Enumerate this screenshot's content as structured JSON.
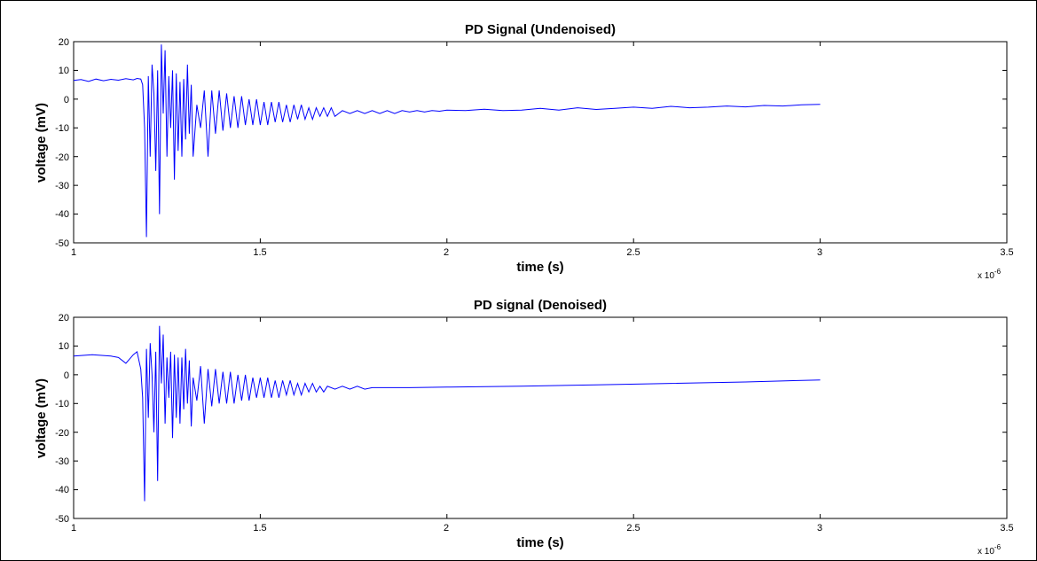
{
  "figure": {
    "background": "#ffffff",
    "axes_color": "#000000",
    "line_color": "#0000ff"
  },
  "chart_data": [
    {
      "type": "line",
      "title": "PD Signal (Undenoised)",
      "xlabel": "time (s)",
      "ylabel": "voltage (mV)",
      "x_multiplier": "x 10",
      "x_multiplier_exp": "-6",
      "xlim": [
        1,
        3.5
      ],
      "ylim": [
        -50,
        20
      ],
      "xticks": [
        "1",
        "1.5",
        "2",
        "2.5",
        "3",
        "3.5"
      ],
      "yticks": [
        "20",
        "10",
        "0",
        "-10",
        "-20",
        "-30",
        "-40",
        "-50"
      ],
      "grid": false,
      "series": [
        {
          "color": "#0000ff",
          "x": [
            1.0,
            1.02,
            1.04,
            1.06,
            1.08,
            1.1,
            1.12,
            1.14,
            1.16,
            1.17,
            1.18,
            1.185,
            1.19,
            1.195,
            1.2,
            1.205,
            1.21,
            1.215,
            1.22,
            1.225,
            1.23,
            1.235,
            1.24,
            1.245,
            1.25,
            1.255,
            1.26,
            1.265,
            1.27,
            1.275,
            1.28,
            1.285,
            1.29,
            1.295,
            1.3,
            1.305,
            1.31,
            1.315,
            1.32,
            1.33,
            1.34,
            1.35,
            1.36,
            1.37,
            1.38,
            1.39,
            1.4,
            1.41,
            1.42,
            1.43,
            1.44,
            1.45,
            1.46,
            1.47,
            1.48,
            1.49,
            1.5,
            1.51,
            1.52,
            1.53,
            1.54,
            1.55,
            1.56,
            1.57,
            1.58,
            1.59,
            1.6,
            1.61,
            1.62,
            1.63,
            1.64,
            1.65,
            1.66,
            1.67,
            1.68,
            1.69,
            1.7,
            1.72,
            1.74,
            1.76,
            1.78,
            1.8,
            1.82,
            1.84,
            1.86,
            1.88,
            1.9,
            1.92,
            1.94,
            1.96,
            1.98,
            2.0,
            2.05,
            2.1,
            2.15,
            2.2,
            2.25,
            2.3,
            2.35,
            2.4,
            2.45,
            2.5,
            2.55,
            2.6,
            2.65,
            2.7,
            2.75,
            2.8,
            2.85,
            2.9,
            2.95,
            3.0
          ],
          "y": [
            6.5,
            6.8,
            6.2,
            7.0,
            6.4,
            6.9,
            6.6,
            7.1,
            6.7,
            7.2,
            7.0,
            5.0,
            -10.0,
            -48.0,
            8.0,
            -20.0,
            12.0,
            2.0,
            -25.0,
            10.0,
            -40.0,
            19.0,
            -5.0,
            17.0,
            -20.0,
            8.0,
            -10.0,
            10.0,
            -28.0,
            9.0,
            -18.0,
            6.0,
            -20.0,
            7.0,
            -14.0,
            12.0,
            -12.0,
            5.0,
            -20.0,
            -2.0,
            -10.0,
            3.0,
            -20.0,
            3.0,
            -12.0,
            3.0,
            -11.0,
            2.0,
            -10.0,
            1.0,
            -10.0,
            1.0,
            -9.0,
            0.0,
            -9.0,
            0.0,
            -9.0,
            -1.0,
            -9.0,
            -1.0,
            -8.0,
            -1.0,
            -8.0,
            -2.0,
            -8.0,
            -2.0,
            -7.0,
            -2.0,
            -7.0,
            -3.0,
            -7.0,
            -3.0,
            -6.0,
            -3.0,
            -6.0,
            -3.0,
            -6.0,
            -4.0,
            -5.0,
            -4.0,
            -5.0,
            -4.0,
            -5.0,
            -4.0,
            -5.0,
            -4.0,
            -4.5,
            -4.0,
            -4.5,
            -4.0,
            -4.2,
            -3.8,
            -4.0,
            -3.5,
            -4.0,
            -3.8,
            -3.2,
            -3.8,
            -3.0,
            -3.6,
            -3.2,
            -2.8,
            -3.2,
            -2.5,
            -3.0,
            -2.8,
            -2.4,
            -2.7,
            -2.2,
            -2.4,
            -2.0,
            -1.8
          ]
        }
      ]
    },
    {
      "type": "line",
      "title": "PD signal (Denoised)",
      "xlabel": "time (s)",
      "ylabel": "voltage (mV)",
      "x_multiplier": "x 10",
      "x_multiplier_exp": "-6",
      "xlim": [
        1,
        3.5
      ],
      "ylim": [
        -50,
        20
      ],
      "xticks": [
        "1",
        "1.5",
        "2",
        "2.5",
        "3",
        "3.5"
      ],
      "yticks": [
        "20",
        "10",
        "0",
        "-10",
        "-20",
        "-30",
        "-40",
        "-50"
      ],
      "grid": false,
      "series": [
        {
          "color": "#0000ff",
          "x": [
            1.0,
            1.05,
            1.1,
            1.12,
            1.14,
            1.16,
            1.17,
            1.18,
            1.185,
            1.19,
            1.195,
            1.2,
            1.205,
            1.21,
            1.215,
            1.22,
            1.225,
            1.23,
            1.235,
            1.24,
            1.245,
            1.25,
            1.255,
            1.26,
            1.265,
            1.27,
            1.275,
            1.28,
            1.285,
            1.29,
            1.295,
            1.3,
            1.305,
            1.31,
            1.315,
            1.32,
            1.33,
            1.34,
            1.35,
            1.36,
            1.37,
            1.38,
            1.39,
            1.4,
            1.41,
            1.42,
            1.43,
            1.44,
            1.45,
            1.46,
            1.47,
            1.48,
            1.49,
            1.5,
            1.51,
            1.52,
            1.53,
            1.54,
            1.55,
            1.56,
            1.57,
            1.58,
            1.59,
            1.6,
            1.61,
            1.62,
            1.63,
            1.64,
            1.65,
            1.66,
            1.67,
            1.68,
            1.7,
            1.72,
            1.74,
            1.76,
            1.78,
            1.8,
            1.85,
            1.9,
            2.0,
            2.2,
            2.4,
            2.6,
            2.8,
            3.0
          ],
          "y": [
            6.5,
            7.0,
            6.5,
            6.0,
            4.0,
            7.0,
            8.0,
            2.0,
            -8.0,
            -44.0,
            9.0,
            -15.0,
            11.0,
            0.0,
            -20.0,
            8.0,
            -37.0,
            17.0,
            -3.0,
            14.0,
            -17.0,
            6.0,
            -8.0,
            8.0,
            -22.0,
            7.0,
            -15.0,
            6.0,
            -17.0,
            6.0,
            -12.0,
            9.0,
            -10.0,
            5.0,
            -18.0,
            -1.0,
            -9.0,
            3.0,
            -17.0,
            2.0,
            -11.0,
            2.0,
            -10.0,
            1.0,
            -10.0,
            1.0,
            -10.0,
            0.0,
            -9.0,
            0.0,
            -9.0,
            -1.0,
            -8.0,
            -1.0,
            -8.0,
            -1.0,
            -8.0,
            -2.0,
            -8.0,
            -2.0,
            -7.0,
            -2.0,
            -7.0,
            -3.0,
            -7.0,
            -3.0,
            -6.0,
            -3.0,
            -6.0,
            -4.0,
            -6.0,
            -4.0,
            -5.0,
            -4.0,
            -5.0,
            -4.0,
            -5.0,
            -4.5,
            -4.5,
            -4.5,
            -4.3,
            -4.0,
            -3.5,
            -3.0,
            -2.5,
            -1.8
          ]
        }
      ]
    }
  ]
}
